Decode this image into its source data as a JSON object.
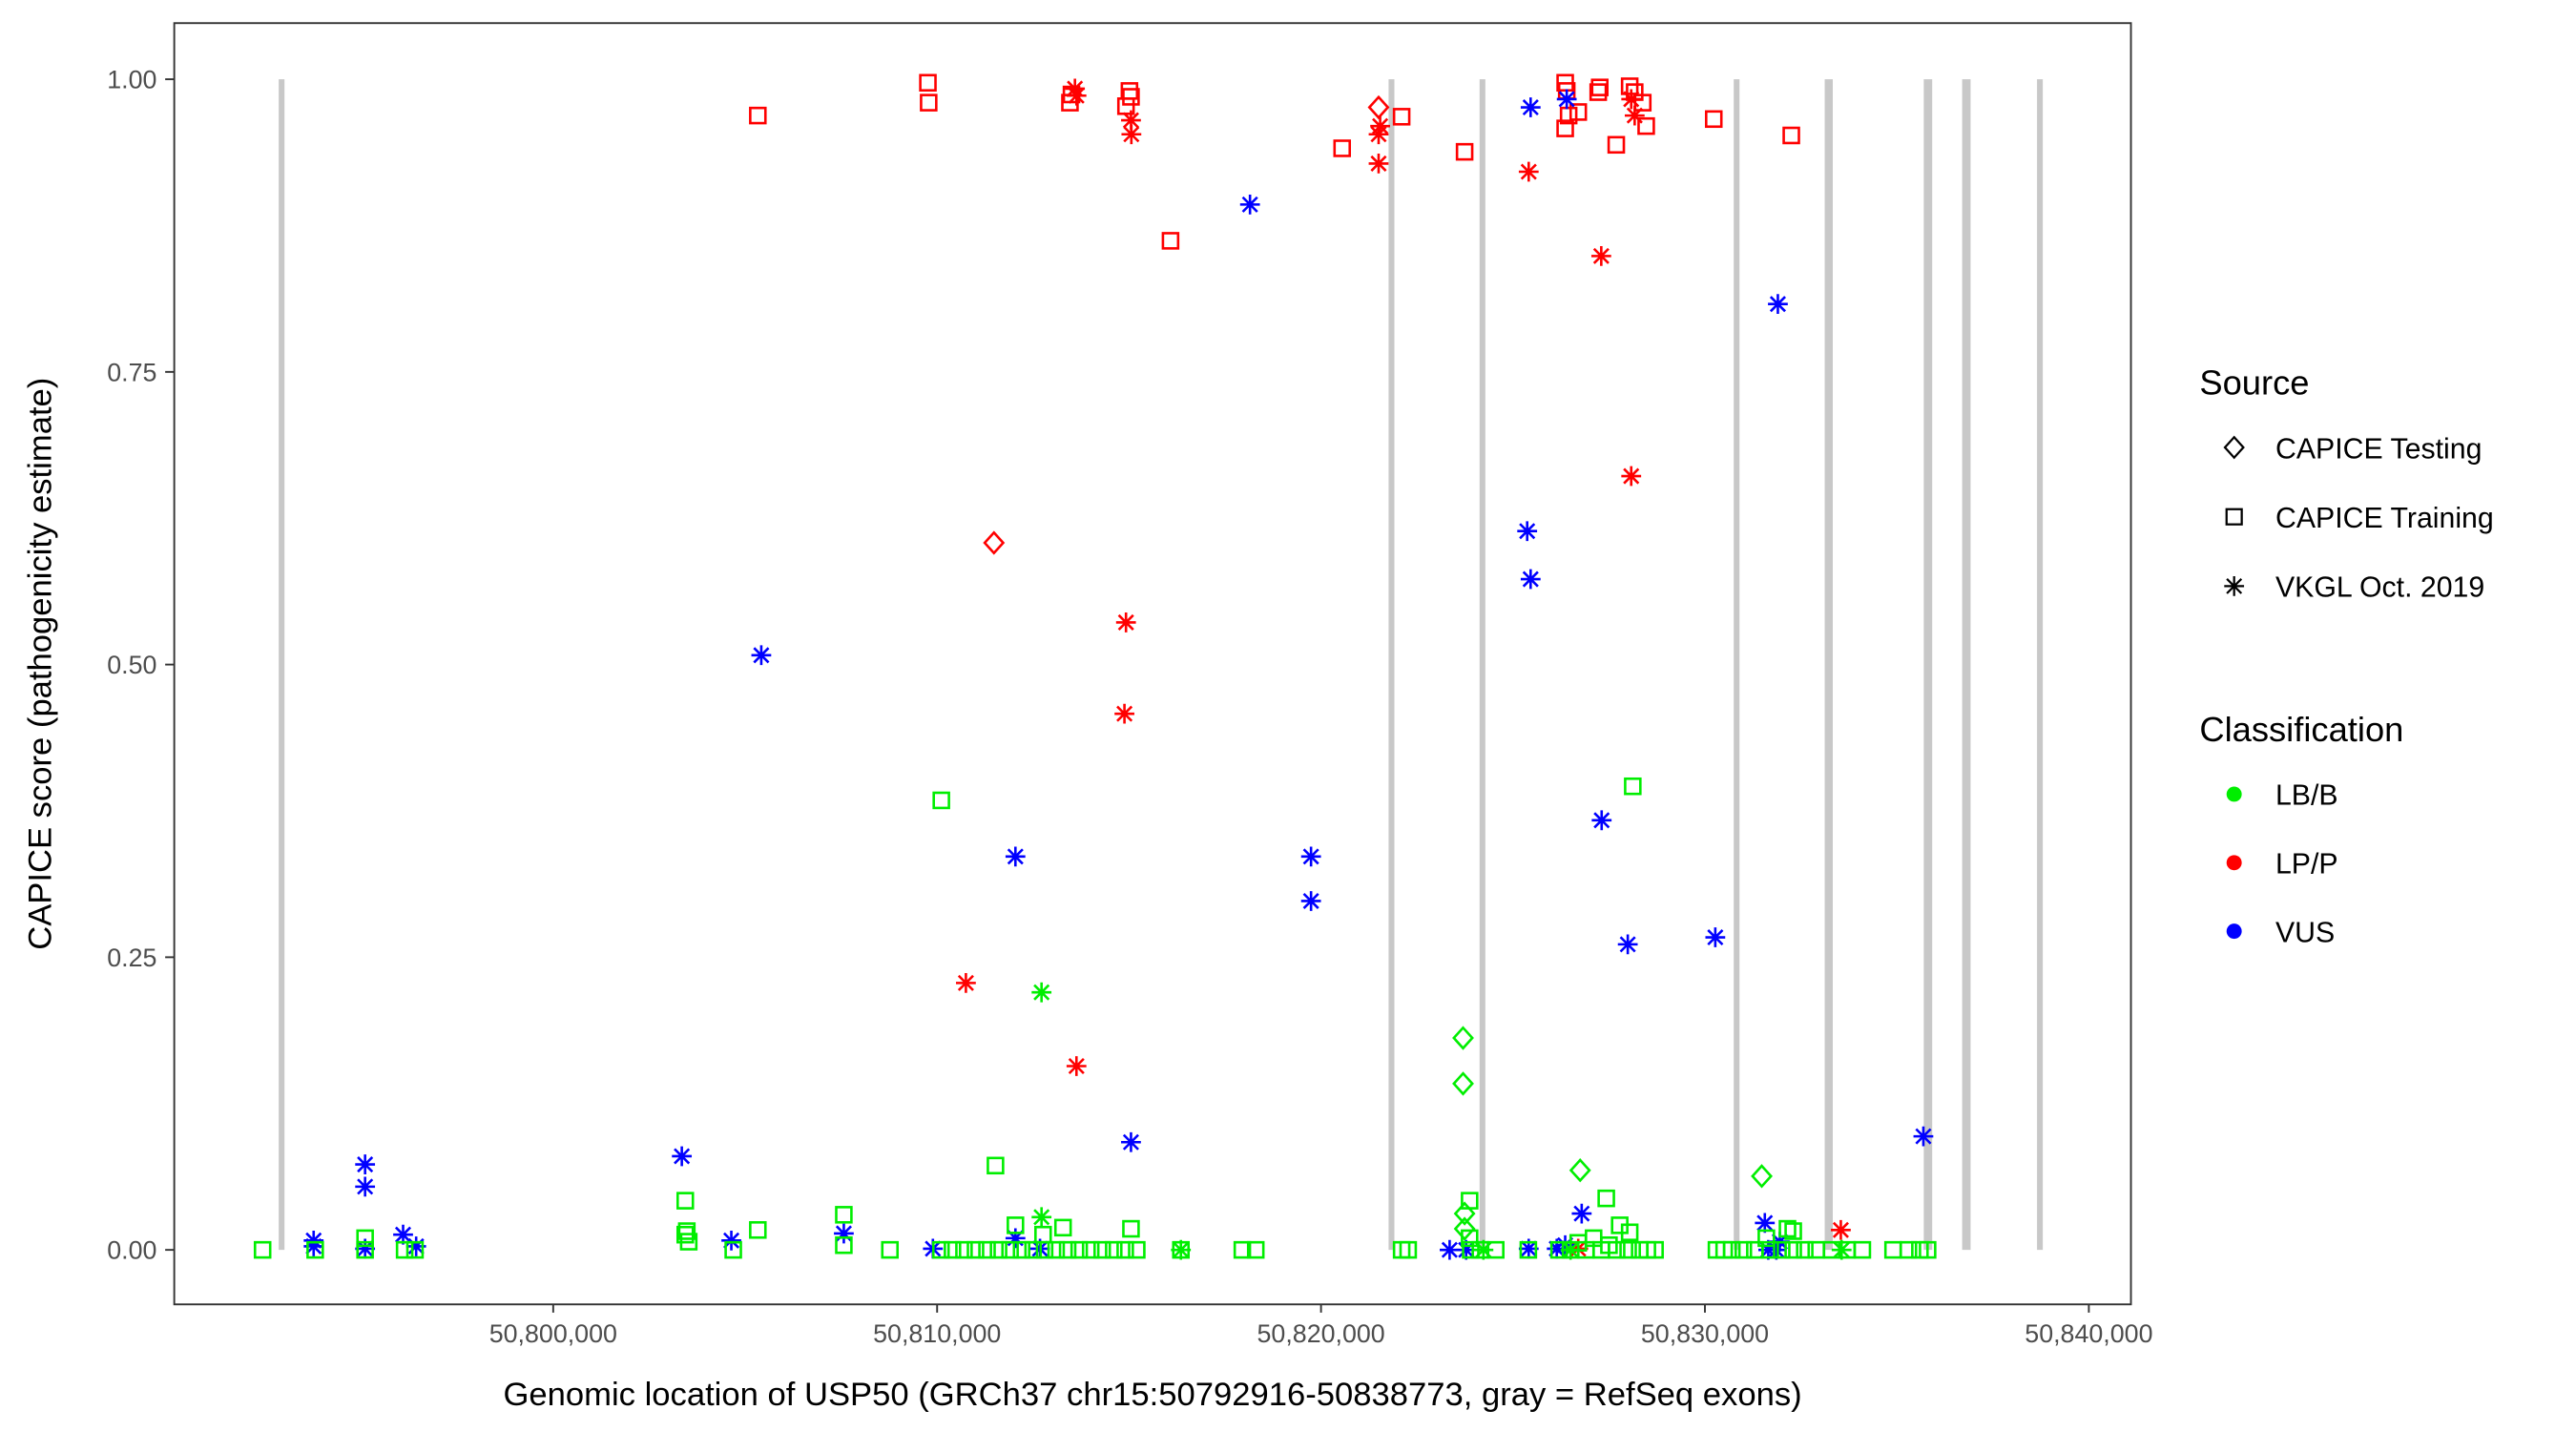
{
  "chart_data": {
    "type": "scatter",
    "xlabel": "Genomic location of USP50 (GRCh37 chr15:50792916-50838773, gray = RefSeq exons)",
    "ylabel": "CAPICE score (pathogenicity estimate)",
    "xlim": [
      50791000,
      50841000
    ],
    "ylim": [
      -0.045,
      1.045
    ],
    "x_ticks": [
      50800000,
      50810000,
      50820000,
      50830000,
      50840000
    ],
    "x_tick_labels": [
      "50,800,000",
      "50,810,000",
      "50,820,000",
      "50,830,000",
      "50,840,000"
    ],
    "y_ticks": [
      0,
      0.25,
      0.5,
      0.75,
      1.0
    ],
    "y_tick_labels": [
      "0.00",
      "0.25",
      "0.50",
      "0.75",
      "1.00"
    ],
    "grid": false,
    "exons": [
      [
        50792850,
        50792980
      ],
      [
        50821760,
        50821900
      ],
      [
        50824130,
        50824270
      ],
      [
        50830750,
        50830890
      ],
      [
        50833120,
        50833330
      ],
      [
        50835700,
        50835920
      ],
      [
        50836700,
        50836920
      ],
      [
        50838650,
        50838773
      ]
    ],
    "exon_color": "#c8c8c8",
    "legend_position": "right",
    "legend": {
      "source_title": "Source",
      "sources": [
        {
          "key": "testing",
          "label": "CAPICE Testing",
          "shape": "diamond"
        },
        {
          "key": "training",
          "label": "CAPICE Training",
          "shape": "square"
        },
        {
          "key": "vkgl",
          "label": "VKGL Oct. 2019",
          "shape": "asterisk"
        }
      ],
      "class_title": "Classification",
      "classes": [
        {
          "key": "LB/B",
          "label": "LB/B",
          "color": "#00ee00"
        },
        {
          "key": "LP/P",
          "label": "LP/P",
          "color": "#ff0000"
        },
        {
          "key": "VUS",
          "label": "VUS",
          "color": "#0000ff"
        }
      ]
    },
    "points_columns": [
      "position",
      "score",
      "source",
      "classification"
    ],
    "points": [
      [
        50805330,
        0.969,
        "training",
        "LP/P"
      ],
      [
        50809760,
        0.997,
        "training",
        "LP/P"
      ],
      [
        50809780,
        0.98,
        "training",
        "LP/P"
      ],
      [
        50813460,
        0.98,
        "training",
        "LP/P"
      ],
      [
        50813500,
        0.987,
        "training",
        "LP/P"
      ],
      [
        50815010,
        0.99,
        "training",
        "LP/P"
      ],
      [
        50815050,
        0.985,
        "training",
        "LP/P"
      ],
      [
        50814920,
        0.977,
        "training",
        "LP/P"
      ],
      [
        50816080,
        0.862,
        "training",
        "LP/P"
      ],
      [
        50820550,
        0.941,
        "training",
        "LP/P"
      ],
      [
        50822100,
        0.968,
        "training",
        "LP/P"
      ],
      [
        50823740,
        0.938,
        "training",
        "LP/P"
      ],
      [
        50826360,
        0.997,
        "training",
        "LP/P"
      ],
      [
        50826400,
        0.99,
        "training",
        "LP/P"
      ],
      [
        50826360,
        0.958,
        "training",
        "LP/P"
      ],
      [
        50826450,
        0.969,
        "training",
        "LP/P"
      ],
      [
        50826700,
        0.972,
        "training",
        "LP/P"
      ],
      [
        50827220,
        0.989,
        "training",
        "LP/P"
      ],
      [
        50827260,
        0.993,
        "training",
        "LP/P"
      ],
      [
        50827690,
        0.944,
        "training",
        "LP/P"
      ],
      [
        50828040,
        0.994,
        "training",
        "LP/P"
      ],
      [
        50828170,
        0.989,
        "training",
        "LP/P"
      ],
      [
        50828380,
        0.98,
        "training",
        "LP/P"
      ],
      [
        50828470,
        0.96,
        "training",
        "LP/P"
      ],
      [
        50830230,
        0.966,
        "training",
        "LP/P"
      ],
      [
        50832250,
        0.952,
        "training",
        "LP/P"
      ],
      [
        50813590,
        0.992,
        "vkgl",
        "LP/P"
      ],
      [
        50813630,
        0.986,
        "vkgl",
        "LP/P"
      ],
      [
        50815050,
        0.965,
        "vkgl",
        "LP/P"
      ],
      [
        50815060,
        0.953,
        "vkgl",
        "LP/P"
      ],
      [
        50821500,
        0.953,
        "vkgl",
        "LP/P"
      ],
      [
        50821540,
        0.96,
        "vkgl",
        "LP/P"
      ],
      [
        50821500,
        0.928,
        "vkgl",
        "LP/P"
      ],
      [
        50825410,
        0.921,
        "vkgl",
        "LP/P"
      ],
      [
        50827300,
        0.849,
        "vkgl",
        "LP/P"
      ],
      [
        50828080,
        0.661,
        "vkgl",
        "LP/P"
      ],
      [
        50814920,
        0.536,
        "vkgl",
        "LP/P"
      ],
      [
        50814880,
        0.458,
        "vkgl",
        "LP/P"
      ],
      [
        50810750,
        0.228,
        "vkgl",
        "LP/P"
      ],
      [
        50813630,
        0.157,
        "vkgl",
        "LP/P"
      ],
      [
        50833540,
        0.017,
        "vkgl",
        "LP/P"
      ],
      [
        50826700,
        0.001,
        "vkgl",
        "LP/P"
      ],
      [
        50828080,
        0.983,
        "vkgl",
        "LP/P"
      ],
      [
        50828170,
        0.969,
        "vkgl",
        "LP/P"
      ],
      [
        50811480,
        0.604,
        "testing",
        "LP/P"
      ],
      [
        50821500,
        0.976,
        "testing",
        "LP/P"
      ],
      [
        50818150,
        0.893,
        "vkgl",
        "VUS"
      ],
      [
        50825460,
        0.976,
        "vkgl",
        "VUS"
      ],
      [
        50826400,
        0.983,
        "vkgl",
        "VUS"
      ],
      [
        50831900,
        0.808,
        "vkgl",
        "VUS"
      ],
      [
        50825370,
        0.614,
        "vkgl",
        "VUS"
      ],
      [
        50825460,
        0.573,
        "vkgl",
        "VUS"
      ],
      [
        50805420,
        0.508,
        "vkgl",
        "VUS"
      ],
      [
        50812040,
        0.336,
        "vkgl",
        "VUS"
      ],
      [
        50819740,
        0.336,
        "vkgl",
        "VUS"
      ],
      [
        50819740,
        0.298,
        "vkgl",
        "VUS"
      ],
      [
        50827310,
        0.367,
        "vkgl",
        "VUS"
      ],
      [
        50827990,
        0.261,
        "vkgl",
        "VUS"
      ],
      [
        50830270,
        0.267,
        "vkgl",
        "VUS"
      ],
      [
        50835690,
        0.097,
        "vkgl",
        "VUS"
      ],
      [
        50815050,
        0.092,
        "vkgl",
        "VUS"
      ],
      [
        50803350,
        0.08,
        "vkgl",
        "VUS"
      ],
      [
        50795100,
        0.073,
        "vkgl",
        "VUS"
      ],
      [
        50795100,
        0.054,
        "vkgl",
        "VUS"
      ],
      [
        50793760,
        0.008,
        "vkgl",
        "VUS"
      ],
      [
        50793760,
        0.003,
        "vkgl",
        "VUS"
      ],
      [
        50795100,
        0.001,
        "vkgl",
        "VUS"
      ],
      [
        50796090,
        0.013,
        "vkgl",
        "VUS"
      ],
      [
        50796430,
        0.003,
        "vkgl",
        "VUS"
      ],
      [
        50804640,
        0.008,
        "vkgl",
        "VUS"
      ],
      [
        50807570,
        0.014,
        "vkgl",
        "VUS"
      ],
      [
        50809890,
        0.001,
        "vkgl",
        "VUS"
      ],
      [
        50812040,
        0.01,
        "vkgl",
        "VUS"
      ],
      [
        50812680,
        0.001,
        "vkgl",
        "VUS"
      ],
      [
        50823350,
        0.0,
        "vkgl",
        "VUS"
      ],
      [
        50823780,
        0.0,
        "vkgl",
        "VUS"
      ],
      [
        50825410,
        0.001,
        "vkgl",
        "VUS"
      ],
      [
        50826140,
        0.001,
        "vkgl",
        "VUS"
      ],
      [
        50826360,
        0.004,
        "vkgl",
        "VUS"
      ],
      [
        50826790,
        0.031,
        "vkgl",
        "VUS"
      ],
      [
        50831560,
        0.023,
        "vkgl",
        "VUS"
      ],
      [
        50831650,
        0.0,
        "vkgl",
        "VUS"
      ],
      [
        50831950,
        0.007,
        "vkgl",
        "VUS"
      ],
      [
        50831860,
        0.0,
        "vkgl",
        "VUS"
      ],
      [
        50792430,
        0.0,
        "training",
        "LB/B"
      ],
      [
        50793800,
        0.0,
        "training",
        "LB/B"
      ],
      [
        50795100,
        0.01,
        "training",
        "LB/B"
      ],
      [
        50795100,
        0.0,
        "training",
        "LB/B"
      ],
      [
        50796130,
        0.0,
        "training",
        "LB/B"
      ],
      [
        50796400,
        0.0,
        "training",
        "LB/B"
      ],
      [
        50803440,
        0.042,
        "training",
        "LB/B"
      ],
      [
        50803440,
        0.013,
        "training",
        "LB/B"
      ],
      [
        50803480,
        0.016,
        "training",
        "LB/B"
      ],
      [
        50803530,
        0.007,
        "training",
        "LB/B"
      ],
      [
        50804690,
        0.0,
        "training",
        "LB/B"
      ],
      [
        50805330,
        0.017,
        "training",
        "LB/B"
      ],
      [
        50807570,
        0.03,
        "training",
        "LB/B"
      ],
      [
        50807570,
        0.004,
        "training",
        "LB/B"
      ],
      [
        50808770,
        0.0,
        "training",
        "LB/B"
      ],
      [
        50810110,
        0.384,
        "training",
        "LB/B"
      ],
      [
        50811520,
        0.072,
        "training",
        "LB/B"
      ],
      [
        50812040,
        0.021,
        "training",
        "LB/B"
      ],
      [
        50812760,
        0.013,
        "training",
        "LB/B"
      ],
      [
        50813280,
        0.019,
        "training",
        "LB/B"
      ],
      [
        50815050,
        0.018,
        "training",
        "LB/B"
      ],
      [
        50810100,
        0.0,
        "training",
        "LB/B"
      ],
      [
        50810400,
        0.0,
        "training",
        "LB/B"
      ],
      [
        50810700,
        0.0,
        "training",
        "LB/B"
      ],
      [
        50811000,
        0.0,
        "training",
        "LB/B"
      ],
      [
        50811300,
        0.0,
        "training",
        "LB/B"
      ],
      [
        50811600,
        0.0,
        "training",
        "LB/B"
      ],
      [
        50811900,
        0.0,
        "training",
        "LB/B"
      ],
      [
        50812200,
        0.0,
        "training",
        "LB/B"
      ],
      [
        50812500,
        0.0,
        "training",
        "LB/B"
      ],
      [
        50812800,
        0.0,
        "training",
        "LB/B"
      ],
      [
        50813100,
        0.0,
        "training",
        "LB/B"
      ],
      [
        50813400,
        0.0,
        "training",
        "LB/B"
      ],
      [
        50813700,
        0.0,
        "training",
        "LB/B"
      ],
      [
        50814000,
        0.0,
        "training",
        "LB/B"
      ],
      [
        50814300,
        0.0,
        "training",
        "LB/B"
      ],
      [
        50814600,
        0.0,
        "training",
        "LB/B"
      ],
      [
        50814900,
        0.0,
        "training",
        "LB/B"
      ],
      [
        50815200,
        0.0,
        "training",
        "LB/B"
      ],
      [
        50816350,
        0.0,
        "training",
        "LB/B"
      ],
      [
        50817950,
        0.0,
        "training",
        "LB/B"
      ],
      [
        50818300,
        0.0,
        "training",
        "LB/B"
      ],
      [
        50822100,
        0.0,
        "training",
        "LB/B"
      ],
      [
        50822270,
        0.0,
        "training",
        "LB/B"
      ],
      [
        50823870,
        0.042,
        "training",
        "LB/B"
      ],
      [
        50823870,
        0.01,
        "training",
        "LB/B"
      ],
      [
        50823900,
        0.0,
        "training",
        "LB/B"
      ],
      [
        50824150,
        0.0,
        "training",
        "LB/B"
      ],
      [
        50824550,
        0.0,
        "training",
        "LB/B"
      ],
      [
        50825400,
        0.0,
        "training",
        "LB/B"
      ],
      [
        50826200,
        0.0,
        "training",
        "LB/B"
      ],
      [
        50826500,
        0.0,
        "training",
        "LB/B"
      ],
      [
        50826700,
        0.006,
        "training",
        "LB/B"
      ],
      [
        50826900,
        0.0,
        "training",
        "LB/B"
      ],
      [
        50827100,
        0.01,
        "training",
        "LB/B"
      ],
      [
        50827300,
        0.0,
        "training",
        "LB/B"
      ],
      [
        50827430,
        0.044,
        "training",
        "LB/B"
      ],
      [
        50827500,
        0.004,
        "training",
        "LB/B"
      ],
      [
        50827700,
        0.0,
        "training",
        "LB/B"
      ],
      [
        50827780,
        0.021,
        "training",
        "LB/B"
      ],
      [
        50828000,
        0.0,
        "training",
        "LB/B"
      ],
      [
        50828040,
        0.015,
        "training",
        "LB/B"
      ],
      [
        50828120,
        0.396,
        "training",
        "LB/B"
      ],
      [
        50828300,
        0.0,
        "training",
        "LB/B"
      ],
      [
        50828500,
        0.0,
        "training",
        "LB/B"
      ],
      [
        50828700,
        0.0,
        "training",
        "LB/B"
      ],
      [
        50830300,
        0.0,
        "training",
        "LB/B"
      ],
      [
        50830500,
        0.0,
        "training",
        "LB/B"
      ],
      [
        50830700,
        0.0,
        "training",
        "LB/B"
      ],
      [
        50831000,
        0.0,
        "training",
        "LB/B"
      ],
      [
        50831300,
        0.0,
        "training",
        "LB/B"
      ],
      [
        50831600,
        0.01,
        "training",
        "LB/B"
      ],
      [
        50831700,
        0.0,
        "training",
        "LB/B"
      ],
      [
        50832000,
        0.0,
        "training",
        "LB/B"
      ],
      [
        50832150,
        0.018,
        "training",
        "LB/B"
      ],
      [
        50832300,
        0.016,
        "training",
        "LB/B"
      ],
      [
        50832300,
        0.0,
        "training",
        "LB/B"
      ],
      [
        50832600,
        0.0,
        "training",
        "LB/B"
      ],
      [
        50832900,
        0.0,
        "training",
        "LB/B"
      ],
      [
        50833300,
        0.0,
        "training",
        "LB/B"
      ],
      [
        50833700,
        0.0,
        "training",
        "LB/B"
      ],
      [
        50834100,
        0.0,
        "training",
        "LB/B"
      ],
      [
        50834900,
        0.0,
        "training",
        "LB/B"
      ],
      [
        50835300,
        0.0,
        "training",
        "LB/B"
      ],
      [
        50835600,
        0.0,
        "training",
        "LB/B"
      ],
      [
        50835800,
        0.0,
        "training",
        "LB/B"
      ],
      [
        50812720,
        0.22,
        "vkgl",
        "LB/B"
      ],
      [
        50812720,
        0.028,
        "vkgl",
        "LB/B"
      ],
      [
        50816350,
        0.0,
        "vkgl",
        "LB/B"
      ],
      [
        50824230,
        0.0,
        "vkgl",
        "LB/B"
      ],
      [
        50826500,
        0.0,
        "vkgl",
        "LB/B"
      ],
      [
        50833560,
        0.0,
        "vkgl",
        "LB/B"
      ],
      [
        50823700,
        0.181,
        "testing",
        "LB/B"
      ],
      [
        50823700,
        0.142,
        "testing",
        "LB/B"
      ],
      [
        50823740,
        0.031,
        "testing",
        "LB/B"
      ],
      [
        50823740,
        0.018,
        "testing",
        "LB/B"
      ],
      [
        50826750,
        0.068,
        "testing",
        "LB/B"
      ],
      [
        50831480,
        0.063,
        "testing",
        "LB/B"
      ]
    ]
  }
}
